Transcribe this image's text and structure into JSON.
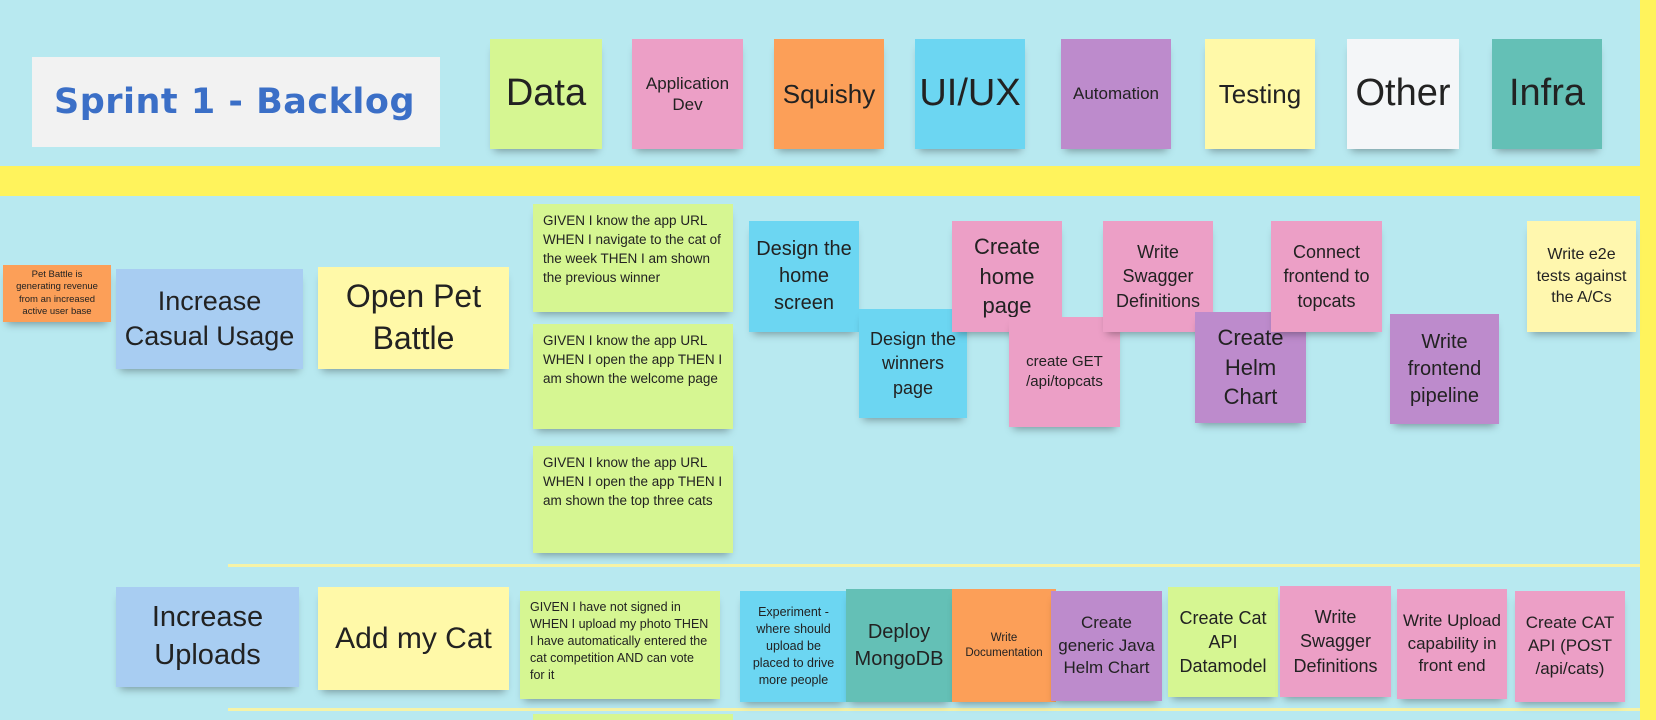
{
  "board": {
    "title": "Sprint 1 - Backlog"
  },
  "categories": [
    {
      "label": "Data",
      "color": "#d6f692"
    },
    {
      "label": "Application Dev",
      "color": "#ec9fc6"
    },
    {
      "label": "Squishy",
      "color": "#fc9f58"
    },
    {
      "label": "UI/UX",
      "color": "#6cd6f2"
    },
    {
      "label": "Automation",
      "color": "#bd8bcc"
    },
    {
      "label": "Testing",
      "color": "#fff9a8"
    },
    {
      "label": "Other",
      "color": "#f4f6f8"
    },
    {
      "label": "Infra",
      "color": "#64c0b6"
    }
  ],
  "row1": {
    "impact": "Pet Battle is generating revenue from an increased active user base",
    "goal": "Increase Casual Usage",
    "epic": "Open Pet Battle",
    "stories": [
      "GIVEN I know the app URL WHEN I navigate to the cat of the week THEN I am shown the previous winner",
      "GIVEN I know the app URL WHEN I open the app THEN I am shown the welcome page",
      "GIVEN I know the app URL WHEN I open the app THEN I am shown the top three cats"
    ],
    "tasks": {
      "design_home": "Design the home screen",
      "design_winners": "Design the winners page",
      "create_home": "Create home page",
      "create_get": "create GET /api/topcats",
      "write_swagger": "Write Swagger Definitions",
      "create_helm": "Create Helm Chart",
      "connect_frontend": "Connect frontend to topcats",
      "write_pipeline": "Write frontend pipeline",
      "write_e2e": "Write e2e tests against the A/Cs"
    }
  },
  "row2": {
    "goal": "Increase Uploads",
    "epic": "Add my Cat",
    "story": "GIVEN I have not signed in WHEN I upload my photo THEN I have automatically entered the cat competition AND can vote for it",
    "tasks": {
      "experiment": "Experiment - where should upload be placed to drive more people",
      "deploy_mongo": "Deploy MongoDB",
      "write_docs": "Write Documentation",
      "create_java_helm": "Create generic Java Helm Chart",
      "create_cat_api_dm": "Create Cat API Datamodel",
      "write_swagger": "Write Swagger Definitions",
      "write_upload": "Write Upload capability in front end",
      "create_cat_api_post": "Create CAT API (POST /api/cats)"
    }
  }
}
